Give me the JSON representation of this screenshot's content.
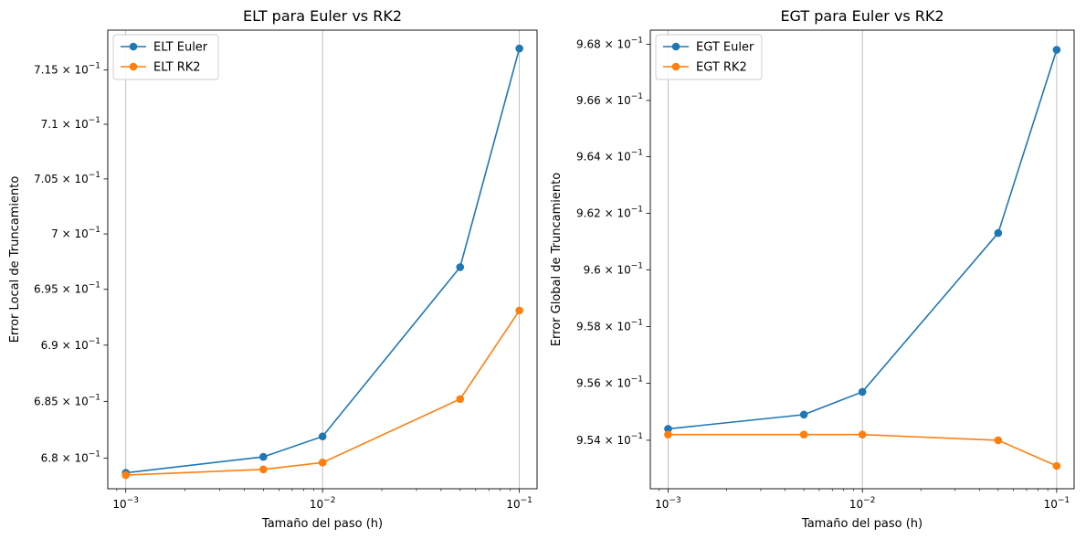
{
  "chart_data": [
    {
      "type": "line",
      "title": "ELT para Euler vs RK2",
      "xlabel": "Tamaño del paso (h)",
      "ylabel": "Error Local de Truncamiento",
      "xscale": "log",
      "yscale": "log",
      "x": [
        0.001,
        0.005,
        0.01,
        0.05,
        0.1
      ],
      "xlim": [
        0.00081,
        0.123
      ],
      "ylim": [
        0.6773,
        0.7187
      ],
      "xticks": [
        0.001,
        0.01,
        0.1
      ],
      "xtick_labels": [
        {
          "base": "10",
          "exp": "−3"
        },
        {
          "base": "10",
          "exp": "−2"
        },
        {
          "base": "10",
          "exp": "−1"
        }
      ],
      "yticks": [
        0.68,
        0.685,
        0.69,
        0.695,
        0.7,
        0.705,
        0.71,
        0.715
      ],
      "ytick_labels": [
        {
          "mant": "6.8",
          "exp": "−1"
        },
        {
          "mant": "6.85",
          "exp": "−1"
        },
        {
          "mant": "6.9",
          "exp": "−1"
        },
        {
          "mant": "6.95",
          "exp": "−1"
        },
        {
          "mant": "7",
          "exp": "−1"
        },
        {
          "mant": "7.05",
          "exp": "−1"
        },
        {
          "mant": "7.1",
          "exp": "−1"
        },
        {
          "mant": "7.15",
          "exp": "−1"
        }
      ],
      "grid": "x-major",
      "legend_position": "top-left",
      "series": [
        {
          "name": "ELT Euler",
          "color": "#1f77b4",
          "values": [
            0.6787,
            0.6801,
            0.6819,
            0.697,
            0.717
          ]
        },
        {
          "name": "ELT RK2",
          "color": "#ff7f0e",
          "values": [
            0.6785,
            0.679,
            0.6796,
            0.6852,
            0.6931
          ]
        }
      ]
    },
    {
      "type": "line",
      "title": "EGT para Euler vs RK2",
      "xlabel": "Tamaño del paso (h)",
      "ylabel": "Error Global de Truncamiento",
      "xscale": "log",
      "yscale": "log",
      "x": [
        0.001,
        0.005,
        0.01,
        0.05,
        0.1
      ],
      "xlim": [
        0.00081,
        0.123
      ],
      "ylim": [
        0.9523,
        0.9685
      ],
      "xticks": [
        0.001,
        0.01,
        0.1
      ],
      "xtick_labels": [
        {
          "base": "10",
          "exp": "−3"
        },
        {
          "base": "10",
          "exp": "−2"
        },
        {
          "base": "10",
          "exp": "−1"
        }
      ],
      "yticks": [
        0.954,
        0.956,
        0.958,
        0.96,
        0.962,
        0.964,
        0.966,
        0.968
      ],
      "ytick_labels": [
        {
          "mant": "9.54",
          "exp": "−1"
        },
        {
          "mant": "9.56",
          "exp": "−1"
        },
        {
          "mant": "9.58",
          "exp": "−1"
        },
        {
          "mant": "9.6",
          "exp": "−1"
        },
        {
          "mant": "9.62",
          "exp": "−1"
        },
        {
          "mant": "9.64",
          "exp": "−1"
        },
        {
          "mant": "9.66",
          "exp": "−1"
        },
        {
          "mant": "9.68",
          "exp": "−1"
        }
      ],
      "grid": "x-major",
      "legend_position": "top-left",
      "series": [
        {
          "name": "EGT Euler",
          "color": "#1f77b4",
          "values": [
            0.9544,
            0.9549,
            0.9557,
            0.9613,
            0.9678
          ]
        },
        {
          "name": "EGT RK2",
          "color": "#ff7f0e",
          "values": [
            0.9542,
            0.9542,
            0.9542,
            0.954,
            0.9531
          ]
        }
      ]
    }
  ]
}
